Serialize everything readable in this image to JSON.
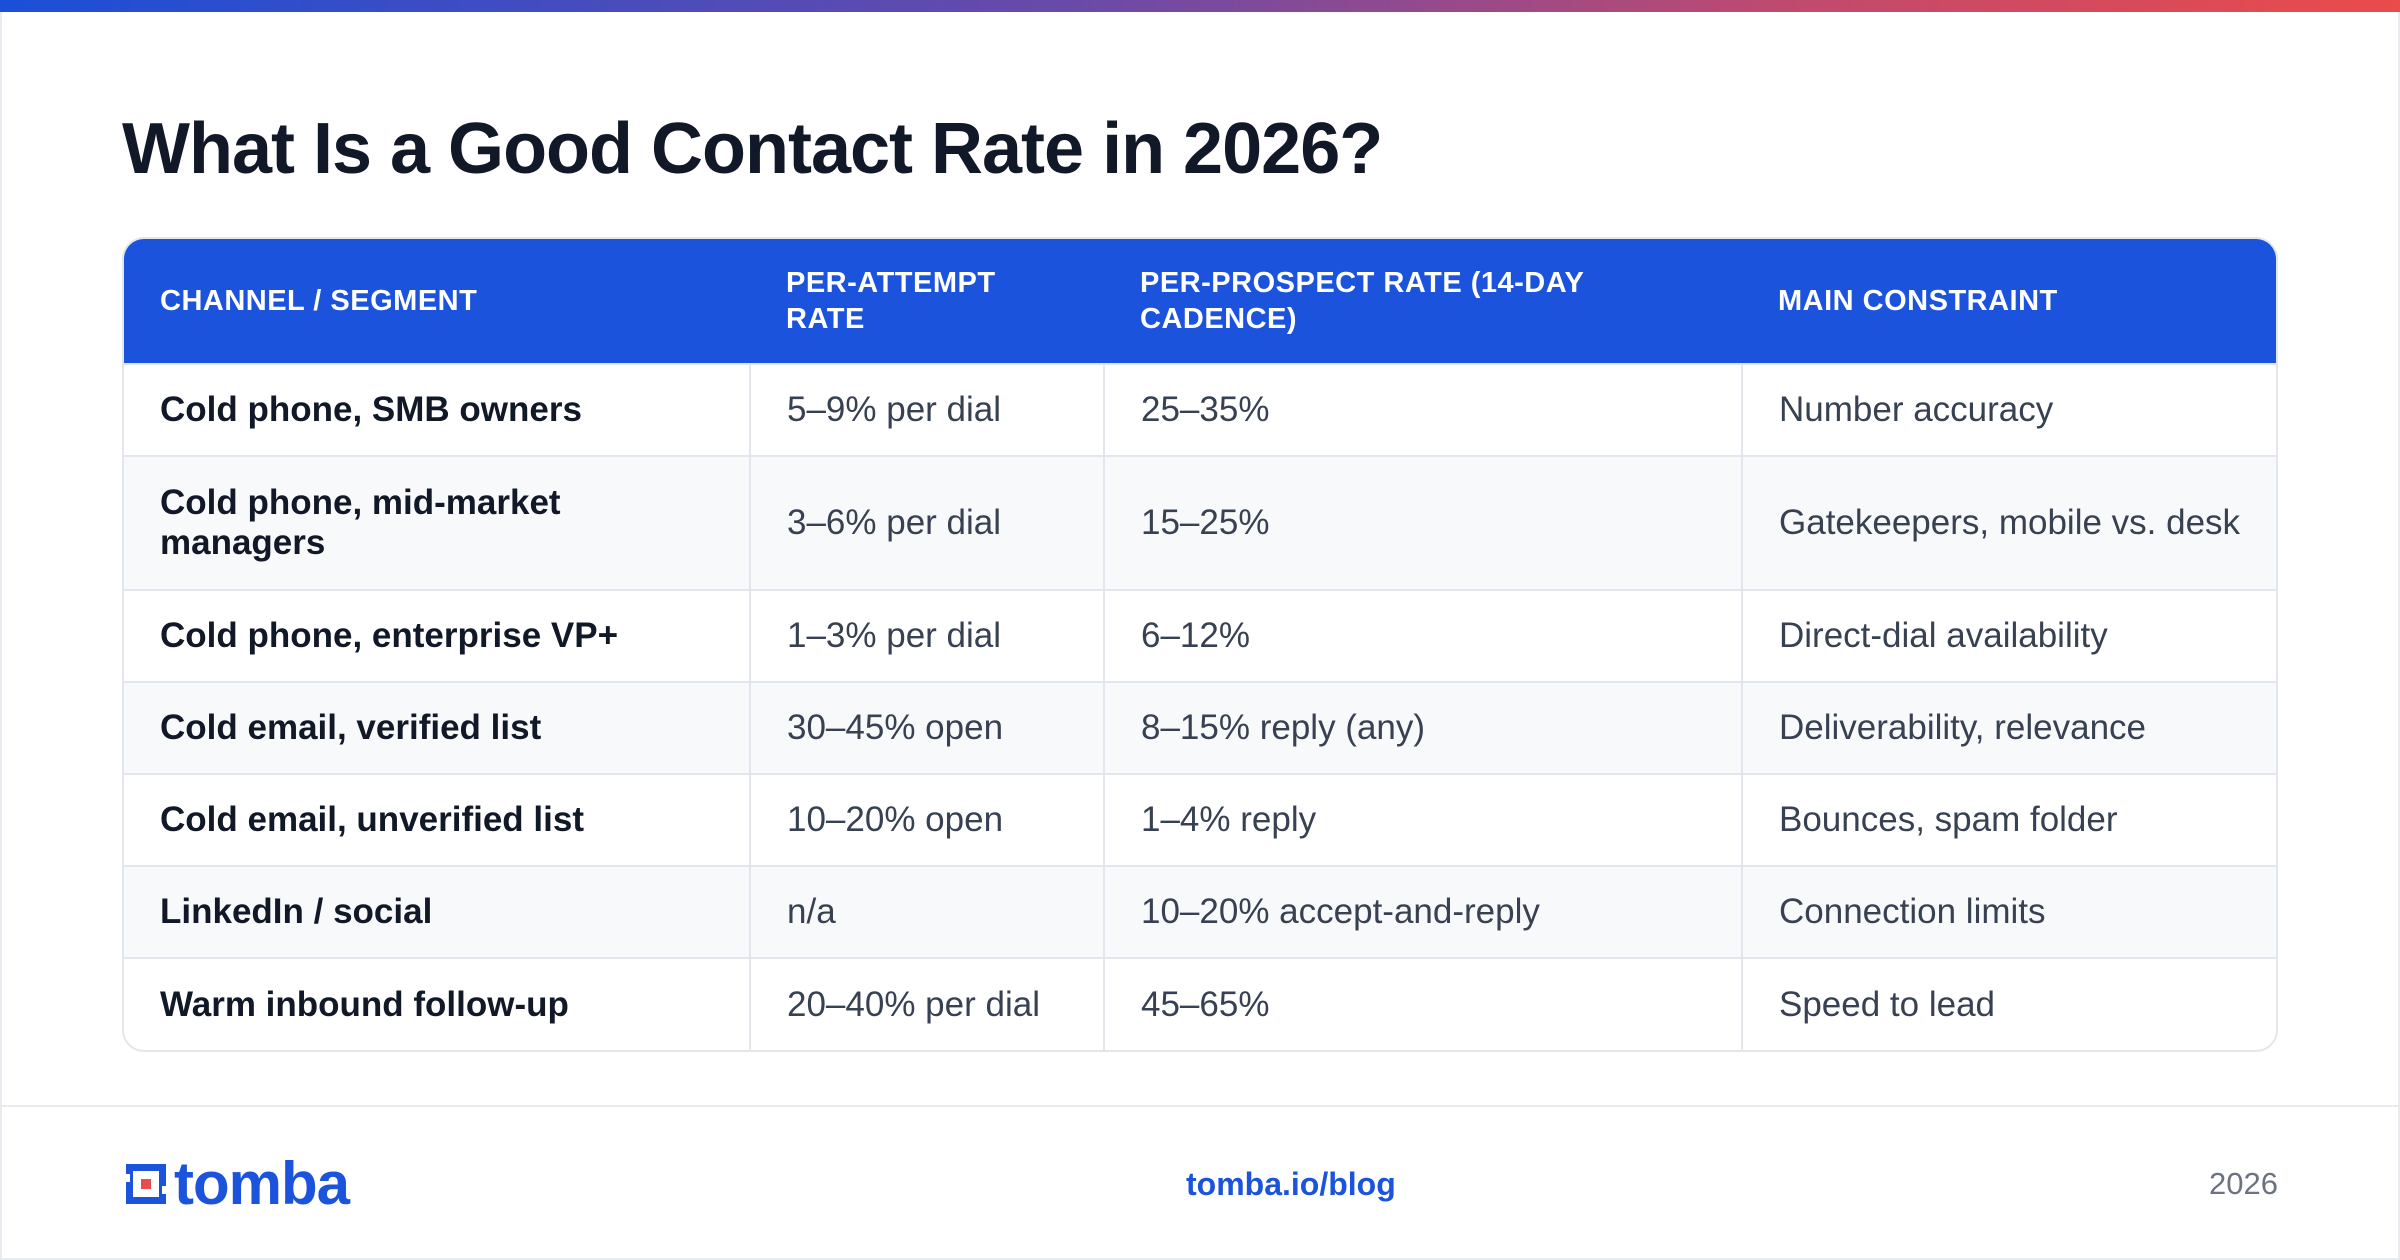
{
  "title": "What Is a Good Contact Rate in 2026?",
  "table": {
    "headers": [
      "CHANNEL / SEGMENT",
      "PER-ATTEMPT RATE",
      "PER-PROSPECT RATE (14-DAY CADENCE)",
      "MAIN CONSTRAINT"
    ],
    "rows": [
      [
        "Cold phone, SMB owners",
        "5–9% per dial",
        "25–35%",
        "Number accuracy"
      ],
      [
        "Cold phone, mid-market managers",
        "3–6% per dial",
        "15–25%",
        "Gatekeepers, mobile vs. desk"
      ],
      [
        "Cold phone, enterprise VP+",
        "1–3% per dial",
        "6–12%",
        "Direct-dial availability"
      ],
      [
        "Cold email, verified list",
        "30–45% open",
        "8–15% reply (any)",
        "Deliverability, relevance"
      ],
      [
        "Cold email, unverified list",
        "10–20% open",
        "1–4% reply",
        "Bounces, spam folder"
      ],
      [
        "LinkedIn / social",
        "n/a",
        "10–20% accept-and-reply",
        "Connection limits"
      ],
      [
        "Warm inbound follow-up",
        "20–40% per dial",
        "45–65%",
        "Speed to lead"
      ]
    ]
  },
  "footer": {
    "logo_text": "tomba",
    "url": "tomba.io/blog",
    "year": "2026"
  },
  "colors": {
    "brand_blue": "#1b53dd",
    "logo_red": "#ea4b4b",
    "title": "#111827"
  }
}
